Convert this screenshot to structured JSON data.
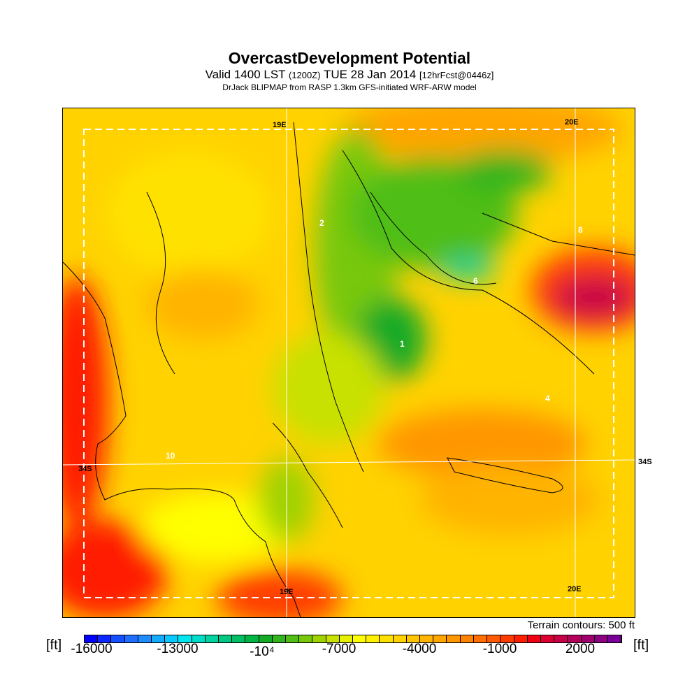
{
  "header": {
    "title": "OvercastDevelopment Potential",
    "valid_prefix": "Valid 1400 LST",
    "utc": "(1200Z)",
    "date": "TUE 28 Jan 2014",
    "forecast": "[12hrFcst@0446z]",
    "subtitle": "DrJack BLIPMAP from RASP 1.3km GFS-initiated WRF-ARW model"
  },
  "map": {
    "grid_labels": {
      "top_19e": "19E",
      "top_20e": "20E",
      "left_34s": "34S",
      "right_34s": "34S",
      "bottom_19e": "19E",
      "bottom_20e": "20E"
    },
    "contour_labels": [
      "2",
      "8",
      "6",
      "1",
      "4",
      "10"
    ],
    "terrain_note": "Terrain contours: 500 ft"
  },
  "colorbar": {
    "unit_left": "[ft]",
    "unit_right": "[ft]",
    "ticks": [
      "-16000",
      "-13000",
      "-10⁴",
      "-7000",
      "-4000",
      "-1000",
      "2000"
    ],
    "colors": [
      "#0000ff",
      "#0a28ff",
      "#1450ff",
      "#1e6eff",
      "#1e8cff",
      "#14aaff",
      "#0ac8ff",
      "#00e6f0",
      "#00dcc8",
      "#00d2a0",
      "#00c882",
      "#00be64",
      "#00b446",
      "#14aa28",
      "#32b41e",
      "#50be14",
      "#78c80a",
      "#a0d200",
      "#c8e100",
      "#e6f000",
      "#ffff00",
      "#fff000",
      "#ffe100",
      "#ffd200",
      "#ffc300",
      "#ffb400",
      "#ffa500",
      "#ff9600",
      "#ff8200",
      "#ff6e00",
      "#ff5a00",
      "#ff3c00",
      "#ff1e00",
      "#f00014",
      "#dc0032",
      "#c80046",
      "#b4005a",
      "#a0006e",
      "#8c0082",
      "#780096"
    ]
  }
}
